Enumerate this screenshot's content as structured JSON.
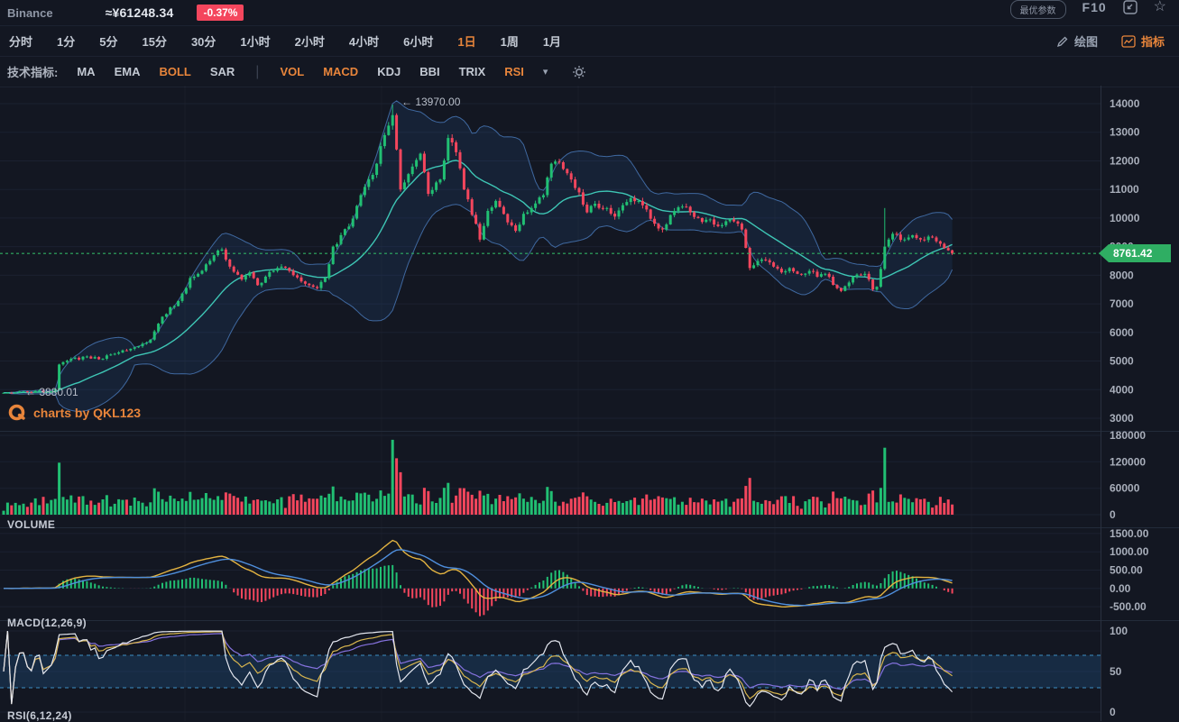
{
  "header": {
    "exchange": "Binance",
    "price_cny": "≈¥61248.34",
    "change": "-0.37%",
    "param_button": "最优参数",
    "f10": "F10"
  },
  "timeframes": [
    "分时",
    "1分",
    "5分",
    "15分",
    "30分",
    "1小时",
    "2小时",
    "4小时",
    "6小时",
    "1日",
    "1周",
    "1月"
  ],
  "active_timeframe": "1日",
  "tools": {
    "draw": "绘图",
    "indicators": "指标"
  },
  "indicator_bar": {
    "label": "技术指标:",
    "overlays": [
      "MA",
      "EMA",
      "BOLL",
      "SAR"
    ],
    "studies": [
      "VOL",
      "MACD",
      "KDJ",
      "BBI",
      "TRIX",
      "RSI"
    ],
    "active": [
      "BOLL",
      "VOL",
      "MACD",
      "RSI"
    ]
  },
  "panels": {
    "volume": "VOLUME",
    "macd": "MACD(12,26,9)",
    "rsi": "RSI(6,12,24)"
  },
  "watermark": {
    "text": "charts by QKL123"
  },
  "chart_data": {
    "type": "candlestick",
    "timeframe": "1日",
    "n_candles": 240,
    "close_anchors": [
      [
        0,
        3890
      ],
      [
        12,
        3940
      ],
      [
        13,
        4020
      ],
      [
        14,
        4880
      ],
      [
        16,
        5010
      ],
      [
        21,
        5160
      ],
      [
        24,
        5060
      ],
      [
        29,
        5300
      ],
      [
        33,
        5480
      ],
      [
        37,
        5750
      ],
      [
        40,
        6550
      ],
      [
        44,
        7100
      ],
      [
        47,
        7900
      ],
      [
        49,
        8050
      ],
      [
        53,
        8700
      ],
      [
        55,
        8900
      ],
      [
        57,
        8300
      ],
      [
        60,
        7850
      ],
      [
        62,
        8100
      ],
      [
        64,
        7650
      ],
      [
        66,
        7950
      ],
      [
        70,
        8300
      ],
      [
        73,
        8000
      ],
      [
        77,
        7650
      ],
      [
        79,
        7550
      ],
      [
        81,
        7900
      ],
      [
        83,
        9000
      ],
      [
        87,
        9700
      ],
      [
        90,
        10800
      ],
      [
        94,
        11900
      ],
      [
        96,
        12900
      ],
      [
        98,
        13600
      ],
      [
        99,
        12400
      ],
      [
        100,
        11000
      ],
      [
        103,
        11800
      ],
      [
        105,
        12250
      ],
      [
        107,
        10850
      ],
      [
        110,
        11350
      ],
      [
        112,
        12800
      ],
      [
        114,
        12300
      ],
      [
        116,
        11000
      ],
      [
        119,
        9800
      ],
      [
        120,
        9250
      ],
      [
        122,
        10250
      ],
      [
        124,
        10600
      ],
      [
        127,
        9850
      ],
      [
        129,
        9550
      ],
      [
        131,
        10150
      ],
      [
        133,
        10350
      ],
      [
        136,
        10800
      ],
      [
        138,
        11900
      ],
      [
        140,
        11950
      ],
      [
        143,
        11350
      ],
      [
        145,
        10900
      ],
      [
        147,
        10200
      ],
      [
        149,
        10500
      ],
      [
        152,
        10350
      ],
      [
        154,
        10050
      ],
      [
        156,
        10450
      ],
      [
        158,
        10700
      ],
      [
        162,
        10300
      ],
      [
        164,
        9800
      ],
      [
        166,
        9600
      ],
      [
        169,
        10250
      ],
      [
        171,
        10400
      ],
      [
        173,
        10200
      ],
      [
        175,
        10000
      ],
      [
        181,
        9750
      ],
      [
        183,
        9950
      ],
      [
        186,
        9600
      ],
      [
        188,
        8250
      ],
      [
        189,
        8350
      ],
      [
        191,
        8550
      ],
      [
        194,
        8300
      ],
      [
        196,
        8100
      ],
      [
        198,
        8250
      ],
      [
        200,
        8050
      ],
      [
        203,
        8150
      ],
      [
        205,
        7950
      ],
      [
        207,
        8050
      ],
      [
        210,
        7550
      ],
      [
        211,
        7450
      ],
      [
        214,
        7950
      ],
      [
        217,
        8050
      ],
      [
        219,
        7500
      ],
      [
        220,
        7600
      ],
      [
        222,
        9000
      ],
      [
        223,
        9250
      ],
      [
        224,
        9450
      ],
      [
        227,
        9250
      ],
      [
        229,
        9400
      ],
      [
        231,
        9250
      ],
      [
        233,
        9350
      ],
      [
        236,
        9100
      ],
      [
        237,
        8950
      ],
      [
        239,
        8761.42
      ]
    ],
    "forced": {
      "peak_index": 98,
      "peak_high": 13970.0,
      "low_index": 13,
      "low_low": 3880.01,
      "spike_index": 222,
      "spike_high": 10350,
      "last_close": 8761.42
    },
    "volume_spikes": {
      "14": 118000,
      "98": 170000,
      "99": 128000,
      "222": 152000
    },
    "axes": {
      "price_ticks": [
        14000,
        13000,
        12000,
        11000,
        10000,
        9000,
        8000,
        7000,
        6000,
        5000,
        4000,
        3000
      ],
      "volume_ticks": [
        180000,
        120000,
        60000,
        0
      ],
      "macd_ticks": [
        "1500.00",
        "1000.00",
        "500.00",
        "0.00",
        "-500.00"
      ],
      "macd_tick_values": [
        1500,
        1000,
        500,
        0,
        -500
      ],
      "rsi_ticks": [
        100,
        50,
        0
      ],
      "price_range": [
        3000,
        14000
      ],
      "volume_range": [
        0,
        180000
      ],
      "macd_range": [
        -500,
        1500
      ],
      "rsi_range": [
        0,
        100
      ]
    },
    "overlays": {
      "boll_period": 20,
      "macd_params": [
        12,
        26,
        9
      ],
      "rsi_params": [
        6,
        12,
        24
      ],
      "rsi_bands": [
        30,
        70
      ]
    },
    "annotations": {
      "high_label": "← 13970.00",
      "low_label": "← 3880.01",
      "current_price_label": "8761.42",
      "current_price": 8761.42
    },
    "colors": {
      "up": "#21bf73",
      "down": "#f4465d",
      "ma": "#3ec6b5",
      "boll_stroke": "#4676b4",
      "boll_fill": "rgba(43,94,160,0.16)",
      "macd_dif": "#e3b341",
      "macd_dea": "#4f8fdd",
      "rsi6": "#e3e6ee",
      "rsi12": "#d9b64e",
      "rsi24": "#8572de",
      "accent": "#e8853b",
      "badge": "#2fae63",
      "dashed_band": "#3e8fc6",
      "current_line": "#2fae63",
      "grid": "#1b2130",
      "axis_text": "#a9afbb"
    }
  }
}
